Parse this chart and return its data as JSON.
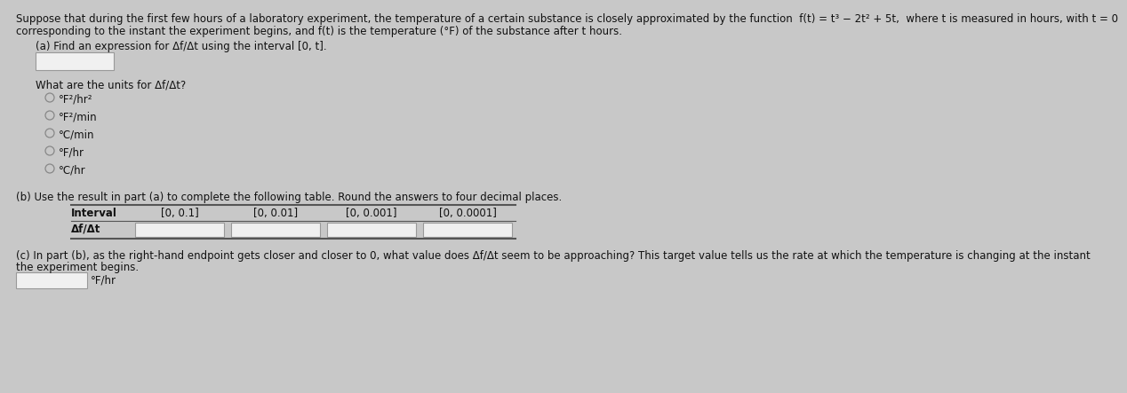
{
  "bg_color": "#c8c8c8",
  "panel_color": "#e8e8e8",
  "text_color": "#111111",
  "header_line1": "Suppose that during the first few hours of a laboratory experiment, the temperature of a certain substance is closely approximated by the function  f(t) = t³ − 2t² + 5t,  where t is measured in hours, with t = 0",
  "header_line2": "corresponding to the instant the experiment begins, and f(t) is the temperature (°F) of the substance after t hours.",
  "part_a_label": "(a) Find an expression for Δf/Δt using the interval [0, t].",
  "part_a_units_label": "What are the units for Δf/Δt?",
  "radio_options": [
    "°F²/hr²",
    "°F²/min",
    "°C/min",
    "°F/hr",
    "°C/hr"
  ],
  "selected_option_index": -1,
  "part_b_label": "(b) Use the result in part (a) to complete the following table. Round the answers to four decimal places.",
  "table_header": [
    "Interval",
    "[0, 0.1]",
    "[0, 0.01]",
    "[0, 0.001]",
    "[0, 0.0001]"
  ],
  "table_row_label": "Δf/Δt",
  "part_c_label_line1": "(c) In part (b), as the right-hand endpoint gets closer and closer to 0, what value does Δf/Δt seem to be approaching? This target value tells us the rate at which the temperature is changing at the instant",
  "part_c_label_line2": "the experiment begins.",
  "part_c_unit": "°F/hr",
  "font_size": 8.5,
  "box_fill": "#f0f0f0",
  "box_edge": "#999999",
  "line_color": "#888888"
}
